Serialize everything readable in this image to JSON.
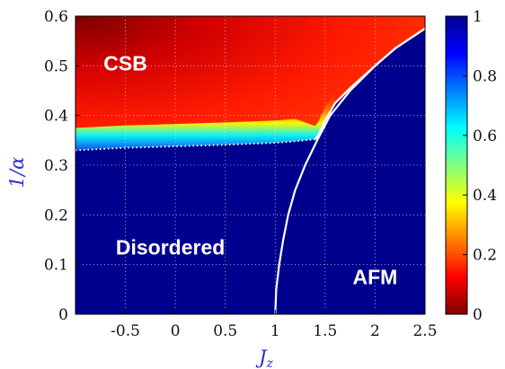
{
  "chart_data": {
    "type": "heatmap",
    "xlabel": "J_z",
    "xlabel_main": "J",
    "xlabel_sub": "z",
    "ylabel": "1/α",
    "xlim": [
      -1.0,
      2.5
    ],
    "ylim": [
      0,
      0.6
    ],
    "xticks": [
      -0.5,
      0,
      0.5,
      1,
      1.5,
      2,
      2.5
    ],
    "xtick_labels": [
      "-0.5",
      "0",
      "0.5",
      "1",
      "1.5",
      "2",
      "2.5"
    ],
    "yticks": [
      0,
      0.1,
      0.2,
      0.3,
      0.4,
      0.5,
      0.6
    ],
    "ytick_labels": [
      "0",
      "0.1",
      "0.2",
      "0.3",
      "0.4",
      "0.5",
      "0.6"
    ],
    "grid": true,
    "colorbar": {
      "range": [
        0,
        1
      ],
      "ticks": [
        0,
        0.2,
        0.4,
        0.6,
        0.8,
        1
      ],
      "tick_labels": [
        "0",
        "0.2",
        "0.4",
        "0.6",
        "0.8",
        "1"
      ],
      "colormap": "jet_reversed",
      "stops": [
        "#7f0000",
        "#ff0000",
        "#ff8000",
        "#ffff00",
        "#80ff80",
        "#00ffff",
        "#0080ff",
        "#0000ff",
        "#00008f"
      ]
    },
    "regions": [
      {
        "label": "CSB",
        "x": -0.5,
        "y": 0.505
      },
      {
        "label": "Disordered",
        "x": -0.05,
        "y": 0.135
      },
      {
        "label": "AFM",
        "x": 2.0,
        "y": 0.075
      }
    ],
    "csb_boundary_dotted": [
      {
        "x": -1.0,
        "y": 0.33
      },
      {
        "x": -0.5,
        "y": 0.335
      },
      {
        "x": 0.0,
        "y": 0.338
      },
      {
        "x": 0.5,
        "y": 0.341
      },
      {
        "x": 1.0,
        "y": 0.345
      },
      {
        "x": 1.2,
        "y": 0.348
      },
      {
        "x": 1.4,
        "y": 0.352
      }
    ],
    "afm_boundary_solid": [
      {
        "x": 1.0,
        "y": 0.0
      },
      {
        "x": 1.01,
        "y": 0.05
      },
      {
        "x": 1.04,
        "y": 0.1
      },
      {
        "x": 1.08,
        "y": 0.15
      },
      {
        "x": 1.13,
        "y": 0.2
      },
      {
        "x": 1.2,
        "y": 0.25
      },
      {
        "x": 1.3,
        "y": 0.3
      },
      {
        "x": 1.42,
        "y": 0.35
      },
      {
        "x": 1.55,
        "y": 0.4
      },
      {
        "x": 1.75,
        "y": 0.45
      },
      {
        "x": 2.0,
        "y": 0.5
      },
      {
        "x": 2.2,
        "y": 0.535
      },
      {
        "x": 2.5,
        "y": 0.575
      }
    ],
    "upper_boundary_solid": [
      {
        "x": 1.4,
        "y": 0.352
      },
      {
        "x": 1.43,
        "y": 0.36
      },
      {
        "x": 1.5,
        "y": 0.39
      },
      {
        "x": 1.6,
        "y": 0.425
      },
      {
        "x": 1.75,
        "y": 0.455
      },
      {
        "x": 2.0,
        "y": 0.5
      },
      {
        "x": 2.2,
        "y": 0.535
      },
      {
        "x": 2.5,
        "y": 0.575
      }
    ]
  }
}
